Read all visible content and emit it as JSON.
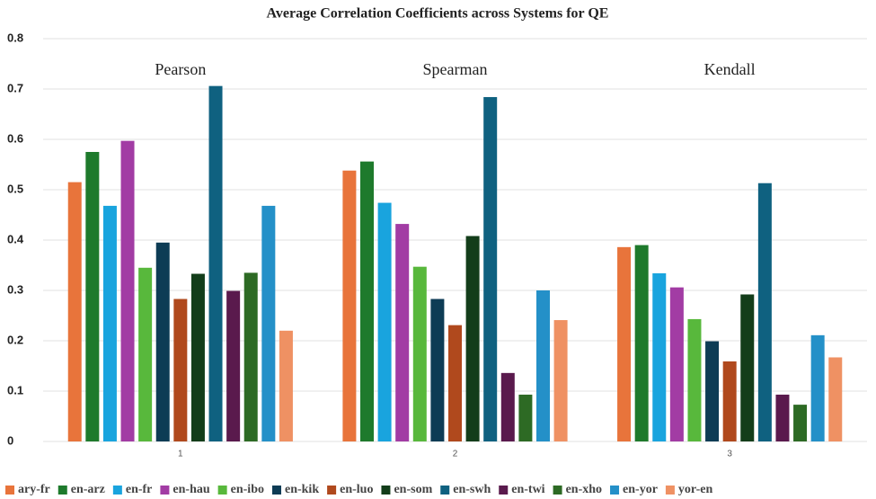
{
  "chart_data": {
    "type": "bar",
    "title": "Average Correlation Coefficients across Systems for QE",
    "categories": [
      "1",
      "2",
      "3"
    ],
    "group_labels": [
      "Pearson",
      "Spearman",
      "Kendall"
    ],
    "ylim": [
      0,
      0.8
    ],
    "yticks": [
      0,
      0.1,
      0.2,
      0.3,
      0.4,
      0.5,
      0.6,
      0.7,
      0.8
    ],
    "grid": true,
    "legend": "bottom",
    "series": [
      {
        "name": "ary-fr",
        "color": "#e8743b",
        "values": [
          0.515,
          0.538,
          0.386
        ]
      },
      {
        "name": "en-arz",
        "color": "#1e7a2c",
        "values": [
          0.575,
          0.556,
          0.39
        ]
      },
      {
        "name": "en-fr",
        "color": "#19a4de",
        "values": [
          0.468,
          0.474,
          0.334
        ]
      },
      {
        "name": "en-hau",
        "color": "#a23ca4",
        "values": [
          0.597,
          0.432,
          0.306
        ]
      },
      {
        "name": "en-ibo",
        "color": "#58b83c",
        "values": [
          0.345,
          0.347,
          0.243
        ]
      },
      {
        "name": "en-kik",
        "color": "#0d3c55",
        "values": [
          0.395,
          0.283,
          0.199
        ]
      },
      {
        "name": "en-luo",
        "color": "#b0491d",
        "values": [
          0.283,
          0.231,
          0.159
        ]
      },
      {
        "name": "en-som",
        "color": "#133d1a",
        "values": [
          0.333,
          0.408,
          0.292
        ]
      },
      {
        "name": "en-swh",
        "color": "#0f6180",
        "values": [
          0.706,
          0.684,
          0.513
        ]
      },
      {
        "name": "en-twi",
        "color": "#5a1a4d",
        "values": [
          0.299,
          0.136,
          0.093
        ]
      },
      {
        "name": "en-xho",
        "color": "#2d6a24",
        "values": [
          0.335,
          0.093,
          0.073
        ]
      },
      {
        "name": "en-yor",
        "color": "#2490c8",
        "values": [
          0.468,
          0.3,
          0.211
        ]
      },
      {
        "name": "yor-en",
        "color": "#ef9163",
        "values": [
          0.22,
          0.241,
          0.167
        ]
      }
    ]
  }
}
